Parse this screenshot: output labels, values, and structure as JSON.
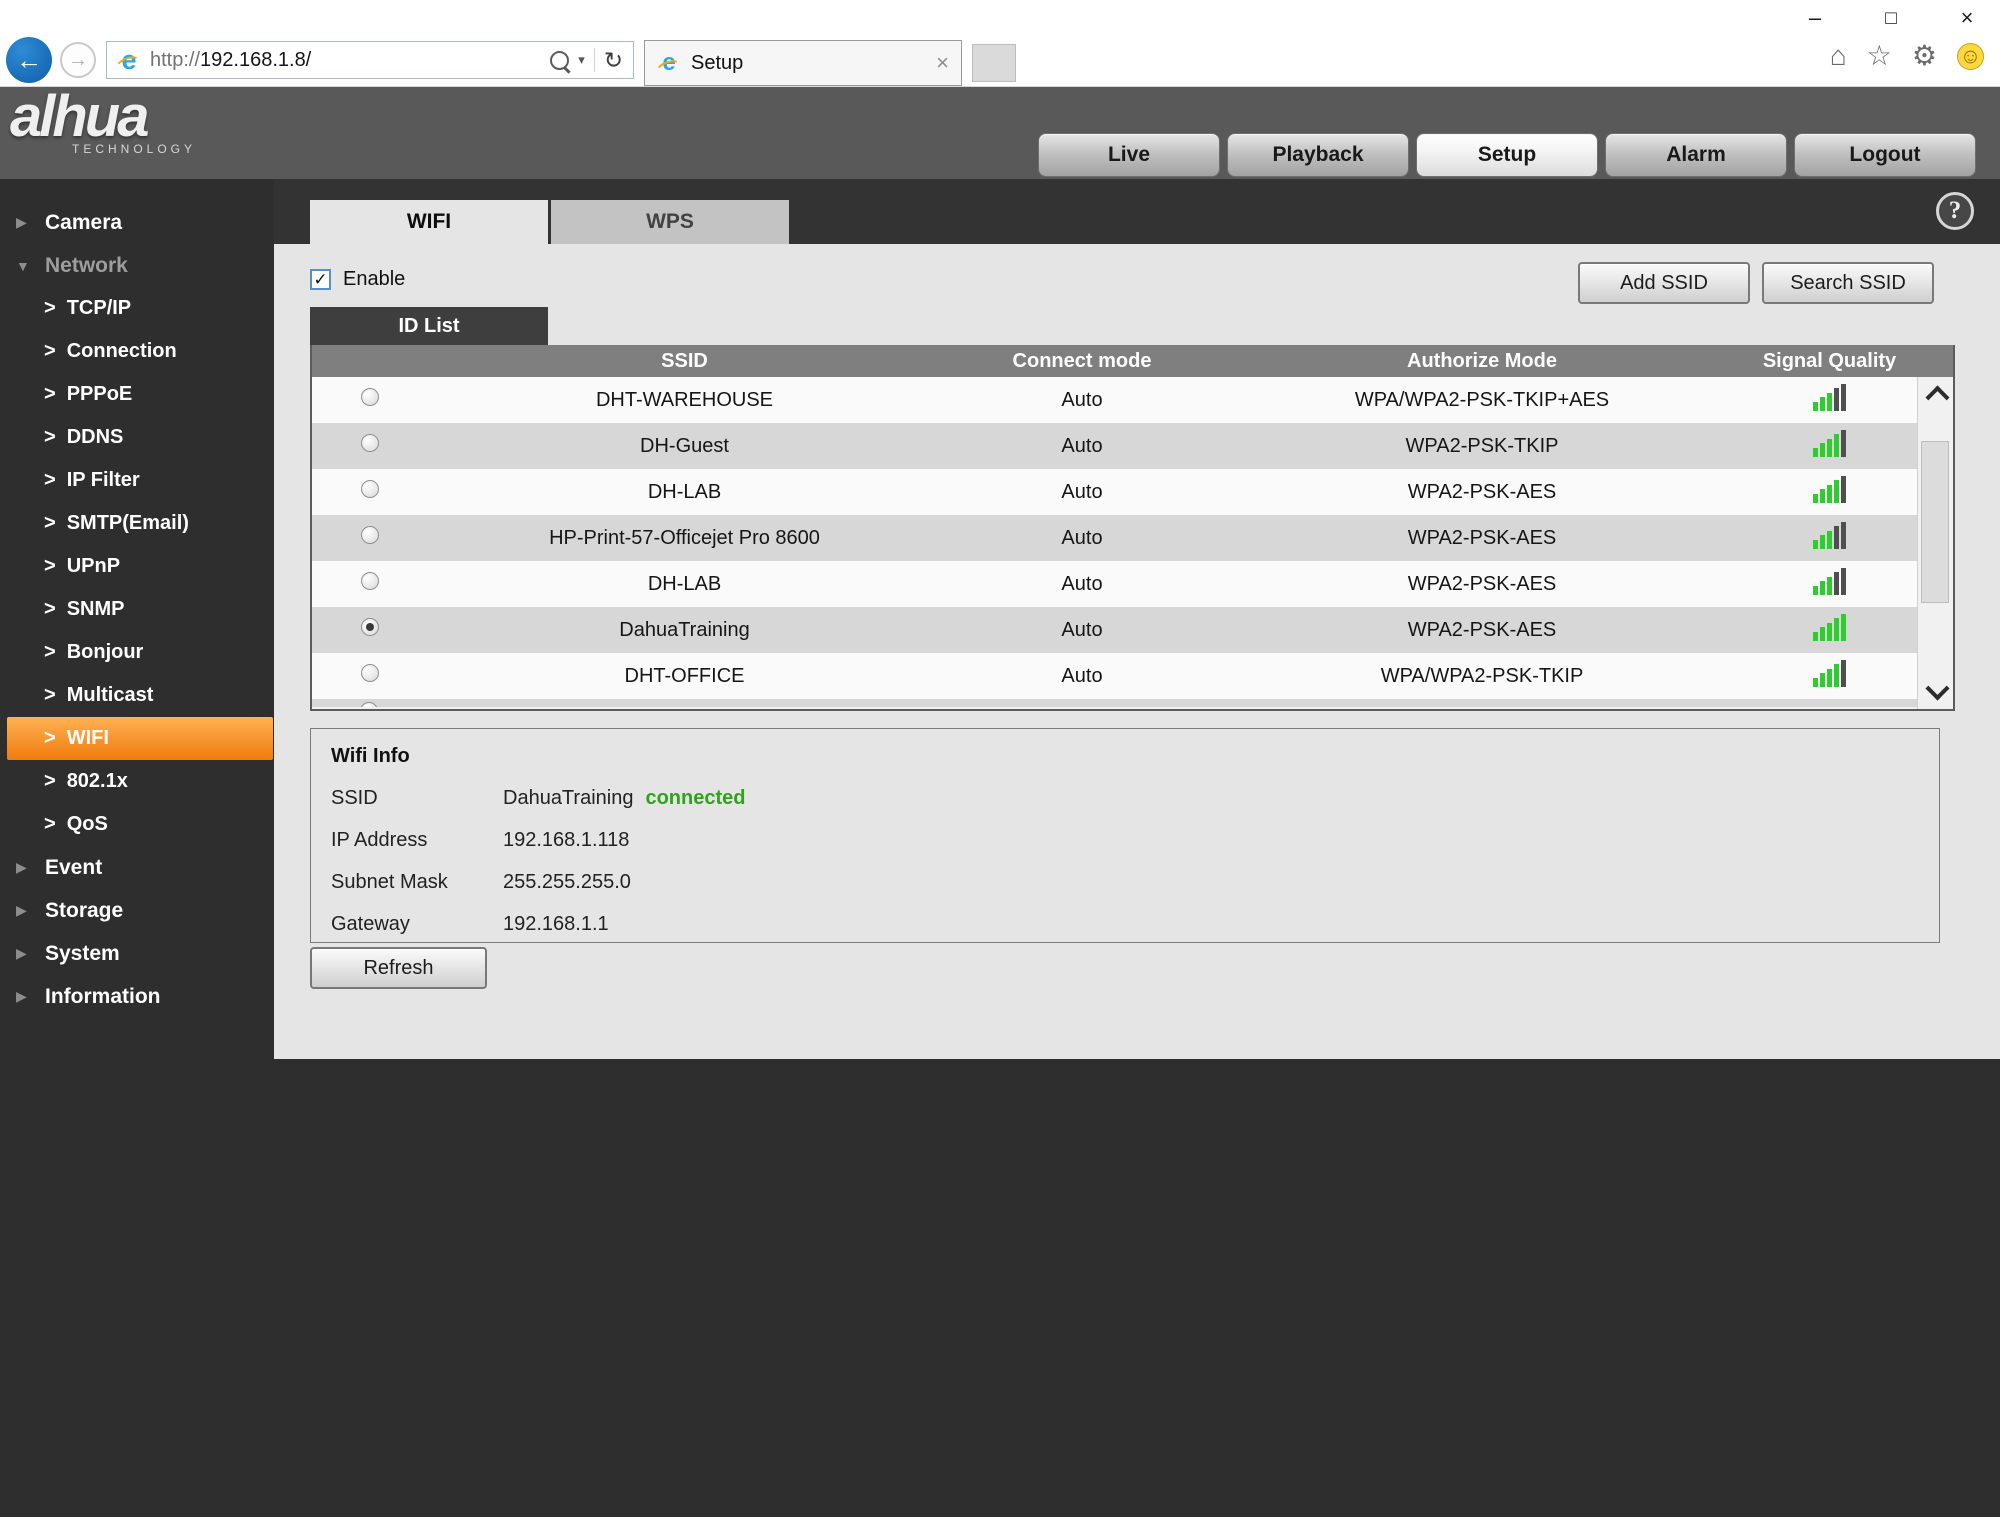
{
  "browser": {
    "address": {
      "scheme": "http://",
      "host": "192.168.1.8/"
    },
    "tab": {
      "title": "Setup"
    }
  },
  "brand": {
    "name": "alhua",
    "tagline": "TECHNOLOGY"
  },
  "nav": {
    "items": [
      {
        "label": "Live",
        "active": false
      },
      {
        "label": "Playback",
        "active": false
      },
      {
        "label": "Setup",
        "active": true
      },
      {
        "label": "Alarm",
        "active": false
      },
      {
        "label": "Logout",
        "active": false
      }
    ]
  },
  "sidebar": {
    "items": [
      {
        "label": "Camera",
        "level": 0,
        "expanded": false
      },
      {
        "label": "Network",
        "level": 0,
        "expanded": true,
        "dim": true
      },
      {
        "label": "TCP/IP",
        "level": 1
      },
      {
        "label": "Connection",
        "level": 1
      },
      {
        "label": "PPPoE",
        "level": 1
      },
      {
        "label": "DDNS",
        "level": 1
      },
      {
        "label": "IP Filter",
        "level": 1
      },
      {
        "label": "SMTP(Email)",
        "level": 1
      },
      {
        "label": "UPnP",
        "level": 1
      },
      {
        "label": "SNMP",
        "level": 1
      },
      {
        "label": "Bonjour",
        "level": 1
      },
      {
        "label": "Multicast",
        "level": 1
      },
      {
        "label": "WIFI",
        "level": 1,
        "active": true
      },
      {
        "label": "802.1x",
        "level": 1
      },
      {
        "label": "QoS",
        "level": 1
      },
      {
        "label": "Event",
        "level": 0,
        "expanded": false
      },
      {
        "label": "Storage",
        "level": 0,
        "expanded": false
      },
      {
        "label": "System",
        "level": 0,
        "expanded": false
      },
      {
        "label": "Information",
        "level": 0,
        "expanded": false
      }
    ]
  },
  "wifi": {
    "tabs": [
      {
        "label": "WIFI",
        "active": true
      },
      {
        "label": "WPS",
        "active": false
      }
    ],
    "enable_label": "Enable",
    "add_ssid_label": "Add SSID",
    "search_ssid_label": "Search SSID",
    "id_list_label": "ID List",
    "table": {
      "headers": [
        "",
        "SSID",
        "Connect mode",
        "Authorize Mode",
        "Signal Quality"
      ],
      "rows": [
        {
          "ssid": "DHT-WAREHOUSE",
          "connect": "Auto",
          "auth": "WPA/WPA2-PSK-TKIP+AES",
          "signal_bars": 3,
          "selected": false
        },
        {
          "ssid": "DH-Guest",
          "connect": "Auto",
          "auth": "WPA2-PSK-TKIP",
          "signal_bars": 4,
          "selected": false
        },
        {
          "ssid": "DH-LAB",
          "connect": "Auto",
          "auth": "WPA2-PSK-AES",
          "signal_bars": 4,
          "selected": false
        },
        {
          "ssid": "HP-Print-57-Officejet Pro 8600",
          "connect": "Auto",
          "auth": "WPA2-PSK-AES",
          "signal_bars": 3,
          "selected": false
        },
        {
          "ssid": "DH-LAB",
          "connect": "Auto",
          "auth": "WPA2-PSK-AES",
          "signal_bars": 3,
          "selected": false
        },
        {
          "ssid": "DahuaTraining",
          "connect": "Auto",
          "auth": "WPA2-PSK-AES",
          "signal_bars": 5,
          "selected": true
        },
        {
          "ssid": "DHT-OFFICE",
          "connect": "Auto",
          "auth": "WPA/WPA2-PSK-TKIP",
          "signal_bars": 4,
          "selected": false
        }
      ],
      "signal_max": 5,
      "partial_row_visible": true
    },
    "info": {
      "title": "Wifi Info",
      "rows": [
        {
          "label": "SSID",
          "value": "DahuaTraining",
          "status": "connected"
        },
        {
          "label": "IP Address",
          "value": "192.168.1.118"
        },
        {
          "label": "Subnet Mask",
          "value": "255.255.255.0"
        },
        {
          "label": "Gateway",
          "value": "192.168.1.1"
        }
      ]
    },
    "refresh_label": "Refresh"
  },
  "colors": {
    "accent_orange": "#f07b0e",
    "connected_green": "#2fa31b",
    "signal_green": "#2ecc2e",
    "header_band_gray": "#595959",
    "page_dark": "#2e2e2e",
    "panel_light": "#e5e5e5",
    "table_header_gray": "#7f7f7f"
  }
}
